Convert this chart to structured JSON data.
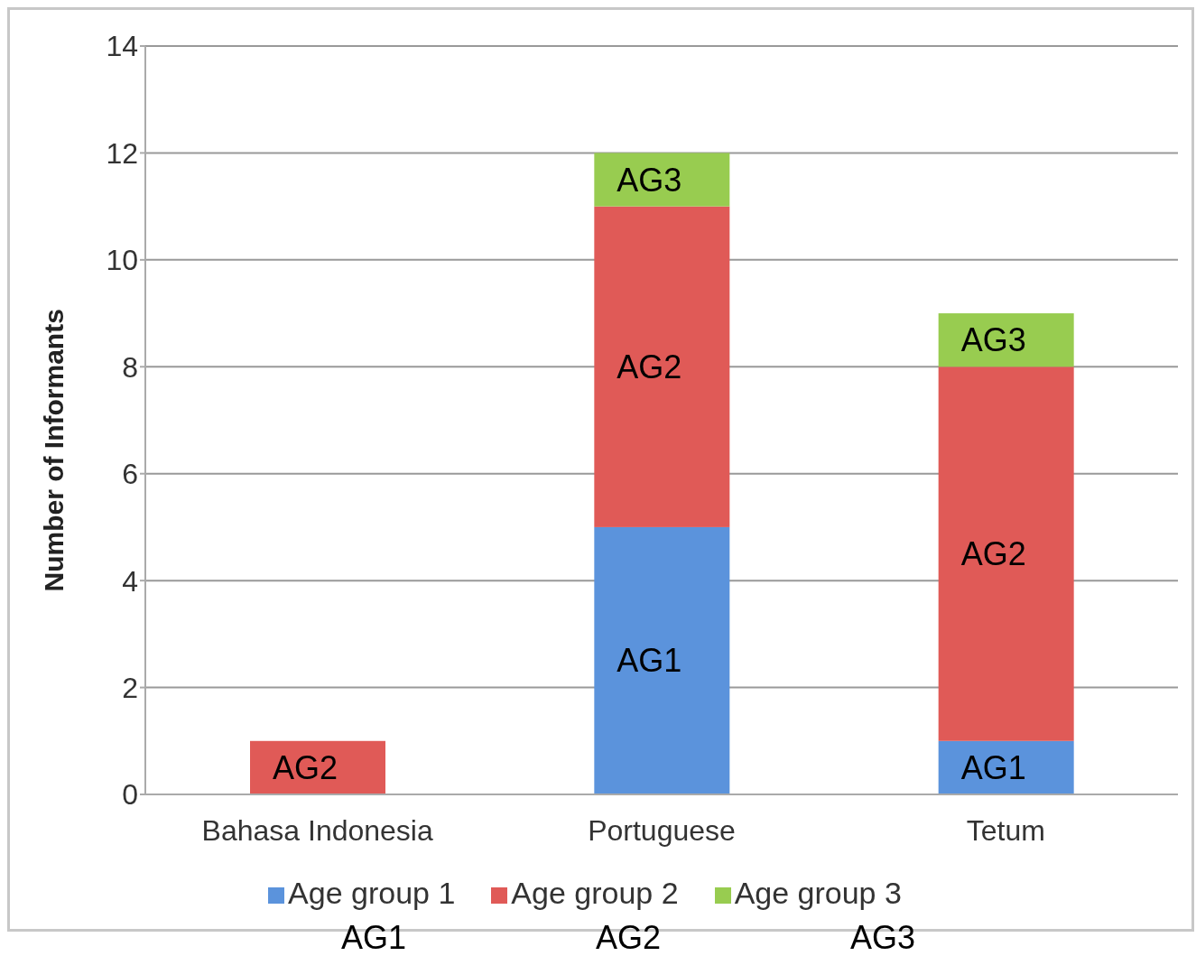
{
  "chart_data": {
    "type": "bar",
    "stacked": true,
    "ylabel": "Number of Informants",
    "categories": [
      "Bahasa Indonesia",
      "Portuguese",
      "Tetum"
    ],
    "series": [
      {
        "name": "Age group 1",
        "color": "#5b93dc",
        "values": [
          0,
          5,
          1
        ],
        "value_labels": [
          null,
          "AG1",
          "AG1"
        ]
      },
      {
        "name": "Age group 2",
        "color": "#e05a57",
        "values": [
          1,
          6,
          7
        ],
        "value_labels": [
          "AG2",
          "AG2",
          "AG2"
        ]
      },
      {
        "name": "Age group 3",
        "color": "#98cc50",
        "values": [
          0,
          1,
          1
        ],
        "value_labels": [
          null,
          "AG3",
          "AG3"
        ]
      }
    ],
    "ylim": [
      0,
      14
    ],
    "yticks": [
      0,
      2,
      4,
      6,
      8,
      10,
      12,
      14
    ],
    "grid": "y",
    "legend": "bottom",
    "annotations": [
      "AG1",
      "AG2",
      "AG3"
    ]
  }
}
